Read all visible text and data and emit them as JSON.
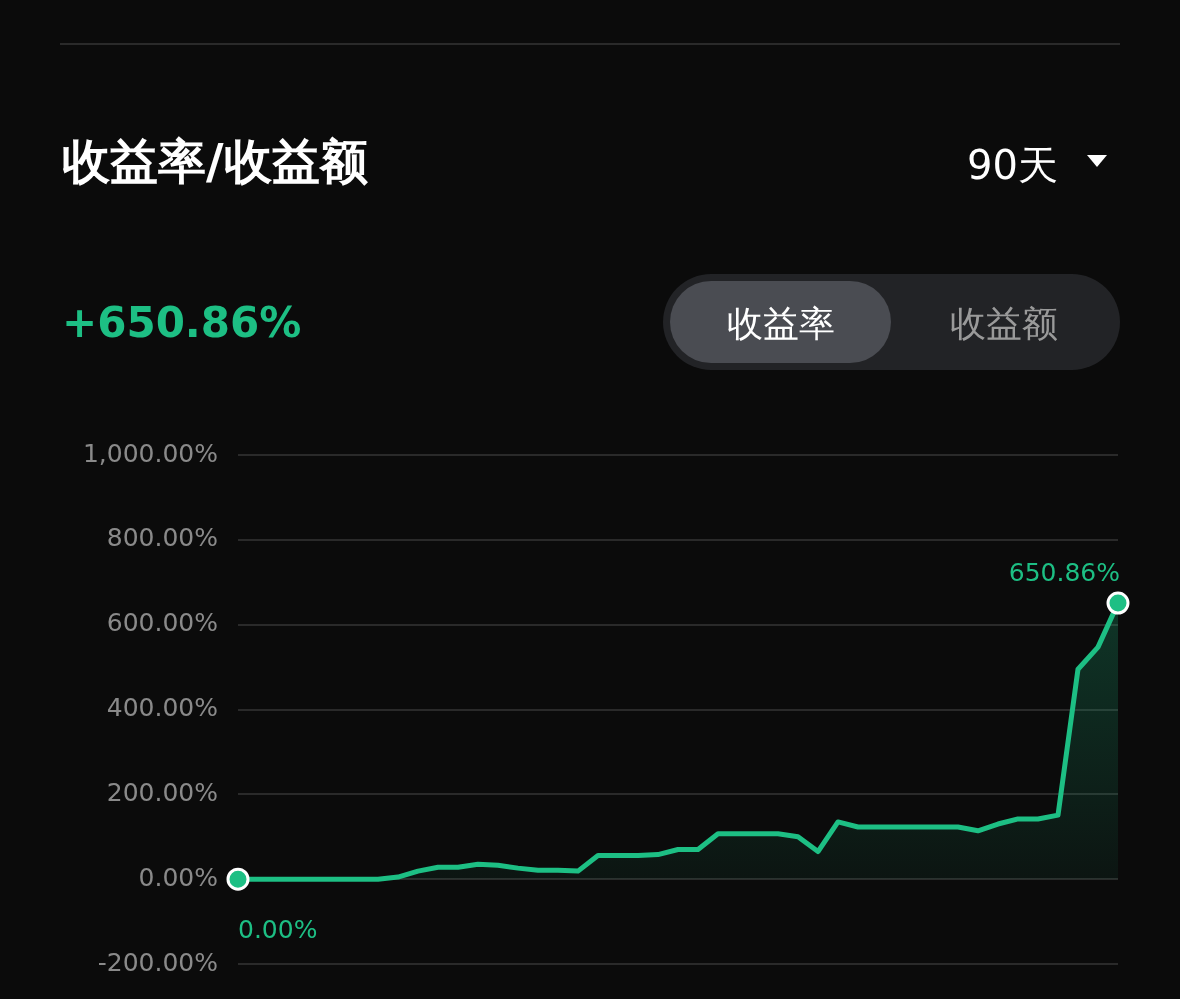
{
  "chart_data": {
    "type": "area",
    "title": "收益率/收益额",
    "annotations": [
      "90天",
      "+650.86%",
      "收益率",
      "收益额"
    ],
    "categories": [
      null,
      null,
      null,
      null,
      null,
      null,
      null,
      null,
      null,
      null,
      null,
      null,
      null,
      null,
      null,
      null,
      null,
      null,
      null,
      null,
      null,
      null,
      null,
      null,
      null,
      null,
      null,
      null,
      null,
      null,
      null,
      null,
      null,
      null,
      null,
      null,
      null,
      null,
      null,
      null,
      null,
      null,
      null,
      null,
      null
    ],
    "series": [
      {
        "color": "#1dbf84",
        "values": [
          0,
          0,
          0,
          0,
          0,
          0,
          0,
          0,
          5,
          19,
          28,
          28,
          35,
          33,
          26,
          21,
          21,
          19,
          56,
          56,
          56,
          58,
          70,
          70,
          107,
          107,
          107,
          107,
          100,
          65,
          135,
          123,
          123,
          123,
          123,
          123,
          123,
          114,
          130,
          142,
          142,
          151,
          495,
          547,
          650.86
        ],
        "value_labels": [
          "0.00%",
          null,
          null,
          null,
          null,
          null,
          null,
          null,
          null,
          null,
          null,
          null,
          null,
          null,
          null,
          null,
          null,
          null,
          null,
          null,
          null,
          null,
          null,
          null,
          null,
          null,
          null,
          null,
          null,
          null,
          null,
          null,
          null,
          null,
          null,
          null,
          null,
          null,
          null,
          null,
          null,
          null,
          null,
          null,
          "650.86%"
        ]
      }
    ],
    "ylim": [
      -200,
      1000
    ],
    "yticks": [
      {
        "value": -200,
        "label": "-200.00%"
      },
      {
        "value": 0,
        "label": "0.00%"
      },
      {
        "value": 200,
        "label": "200.00%"
      },
      {
        "value": 400,
        "label": "400.00%"
      },
      {
        "value": 600,
        "label": "600.00%"
      },
      {
        "value": 800,
        "label": "800.00%"
      },
      {
        "value": 1000,
        "label": "1,000.00%"
      }
    ],
    "grid": "y",
    "tick_labels": "y",
    "legend": false
  }
}
